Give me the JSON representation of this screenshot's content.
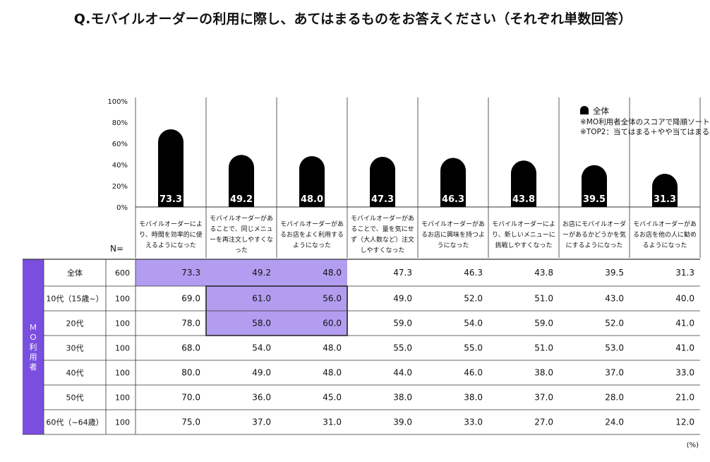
{
  "title": "Q.モバイルオーダーの利用に際し、あてはまるものをお答えください（それぞれ単数回答）",
  "legend": {
    "series_label": "全体",
    "notes": [
      "※MO利用者全体のスコアで降順ソート",
      "※TOP2：当てはまる＋やや当てはまる"
    ]
  },
  "table": {
    "n_header": "N=",
    "group_label": "ＭＯ利用者",
    "unit_label": "(%)"
  },
  "colors": {
    "bar": "#000000",
    "highlight": "#b39df0",
    "group_fill": "#7a4fe0",
    "grid": "#333333"
  },
  "chart_data": {
    "type": "bar",
    "y_ticks": [
      "100%",
      "80%",
      "60%",
      "40%",
      "20%",
      "0%"
    ],
    "ylim": [
      0,
      100
    ],
    "categories": [
      "モバイルオーダーにより、時間を効率的に使えるようになった",
      "モバイルオーダーがあることで、同じメニューを再注文しやすくなった",
      "モバイルオーダーがあるお店をよく利用するようになった",
      "モバイルオーダーがあることで、量を気にせず（大人数など）注文しやすくなった",
      "モバイルオーダーがあるお店に興味を持つようになった",
      "モバイルオーダーにより、新しいメニューに挑戦しやすくなった",
      "お店にモバイルオーダーがあるかどうかを気にするようになった",
      "モバイルオーダーがあるお店を他の人に勧めるようになった"
    ],
    "series": [
      {
        "name": "全体",
        "values": [
          73.3,
          49.2,
          48.0,
          47.3,
          46.3,
          43.8,
          39.5,
          31.3
        ]
      }
    ],
    "bar_labels": [
      "73.3",
      "49.2",
      "48.0",
      "47.3",
      "46.3",
      "43.8",
      "39.5",
      "31.3"
    ],
    "rows": [
      {
        "label": "全体",
        "n": "600",
        "values": [
          "73.3",
          "49.2",
          "48.0",
          "47.3",
          "46.3",
          "43.8",
          "39.5",
          "31.3"
        ],
        "highlight": [
          0,
          1,
          2
        ]
      },
      {
        "label": "10代（15歳~）",
        "n": "100",
        "values": [
          "69.0",
          "61.0",
          "56.0",
          "49.0",
          "52.0",
          "51.0",
          "43.0",
          "40.0"
        ],
        "highlight": [
          1,
          2
        ]
      },
      {
        "label": "20代",
        "n": "100",
        "values": [
          "78.0",
          "58.0",
          "60.0",
          "59.0",
          "54.0",
          "59.0",
          "52.0",
          "41.0"
        ],
        "highlight": [
          1,
          2
        ]
      },
      {
        "label": "30代",
        "n": "100",
        "values": [
          "68.0",
          "54.0",
          "48.0",
          "55.0",
          "55.0",
          "51.0",
          "53.0",
          "41.0"
        ],
        "highlight": []
      },
      {
        "label": "40代",
        "n": "100",
        "values": [
          "80.0",
          "49.0",
          "48.0",
          "44.0",
          "46.0",
          "38.0",
          "37.0",
          "33.0"
        ],
        "highlight": []
      },
      {
        "label": "50代",
        "n": "100",
        "values": [
          "70.0",
          "36.0",
          "45.0",
          "38.0",
          "38.0",
          "37.0",
          "28.0",
          "21.0"
        ],
        "highlight": []
      },
      {
        "label": "60代（~64歳）",
        "n": "100",
        "values": [
          "75.0",
          "37.0",
          "31.0",
          "39.0",
          "33.0",
          "27.0",
          "24.0",
          "12.0"
        ],
        "highlight": []
      }
    ]
  }
}
